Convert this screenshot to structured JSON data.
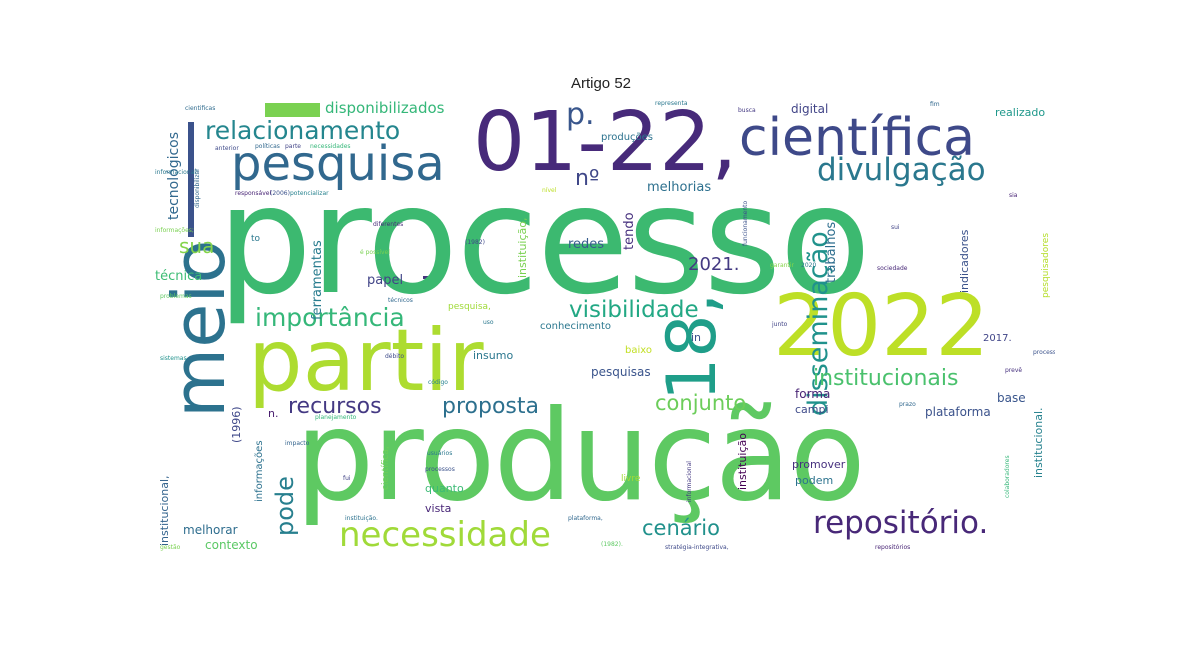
{
  "title": "Artigo 52",
  "words": [
    {
      "id": "processo",
      "text": "processo",
      "color": "#3cb970"
    },
    {
      "id": "producao",
      "text": "produção",
      "color": "#5ec962"
    },
    {
      "id": "partir",
      "text": "partir",
      "color": "#addc30"
    },
    {
      "id": "0122",
      "text": "01-22,",
      "color": "#472a7a"
    },
    {
      "id": "2022",
      "text": "2022",
      "color": "#bddf26"
    },
    {
      "id": "18",
      "text": "18,",
      "color": "#1f9e89"
    },
    {
      "id": "meio",
      "text": "meio",
      "color": "#2c728e"
    },
    {
      "id": "cientifica",
      "text": "científica",
      "color": "#3e4989"
    },
    {
      "id": "pesquisa",
      "text": "pesquisa",
      "color": "#31688e"
    },
    {
      "id": "necessidade",
      "text": "necessidade",
      "color": "#a0da39"
    },
    {
      "id": "repositorio",
      "text": "repositório.",
      "color": "#482878"
    },
    {
      "id": "divulgacao",
      "text": "divulgação",
      "color": "#2a788e"
    },
    {
      "id": "disseminacao",
      "text": "disseminação",
      "color": "#20928c"
    },
    {
      "id": "relacionamento",
      "text": "relacionamento",
      "color": "#24868e"
    },
    {
      "id": "importancia",
      "text": "importância",
      "color": "#35b779"
    },
    {
      "id": "visibilidade",
      "text": "visibilidade",
      "color": "#22a884"
    },
    {
      "id": "institucionais",
      "text": "institucionais",
      "color": "#4ac16d"
    },
    {
      "id": "recursos",
      "text": "recursos",
      "color": "#443983"
    },
    {
      "id": "proposta",
      "text": "proposta",
      "color": "#2d708e"
    },
    {
      "id": "conjunto",
      "text": "conjunto",
      "color": "#6ccd5a"
    },
    {
      "id": "pode",
      "text": "pode",
      "color": "#277f8e"
    },
    {
      "id": "cenario",
      "text": "cenário",
      "color": "#21918c"
    },
    {
      "id": "sua",
      "text": "sua",
      "color": "#84d44b"
    },
    {
      "id": "n2021",
      "text": "2021.",
      "color": "#443a83"
    },
    {
      "id": "p",
      "text": "p.",
      "color": "#39568c"
    },
    {
      "id": "no",
      "text": "nº",
      "color": "#3f4788"
    },
    {
      "id": "melhorias",
      "text": "melhorias",
      "color": "#2d708e"
    },
    {
      "id": "tendo",
      "text": "tendo",
      "color": "#46307e"
    },
    {
      "id": "disponibilizados",
      "text": "disponibilizados",
      "color": "#35b779"
    },
    {
      "id": "tecnologicos",
      "text": "tecnológicos",
      "color": "#31688e"
    },
    {
      "id": "tecnica",
      "text": "técnica",
      "color": "#3dbc74"
    },
    {
      "id": "ferramentas",
      "text": "ferramentas",
      "color": "#287c8e"
    },
    {
      "id": "papel",
      "text": "papel",
      "color": "#414487"
    },
    {
      "id": "redes",
      "text": "redes",
      "color": "#365c8d"
    },
    {
      "id": "trabalhos",
      "text": "trabalhos",
      "color": "#2e6e8e"
    },
    {
      "id": "indicadores",
      "text": "indicadores",
      "color": "#3b528b"
    },
    {
      "id": "digital",
      "text": "digital",
      "color": "#414487"
    },
    {
      "id": "realizado",
      "text": "realizado",
      "color": "#1f988b"
    },
    {
      "id": "producoes",
      "text": "produções",
      "color": "#2c728e"
    },
    {
      "id": "instituicao",
      "text": "instituição,",
      "color": "#7ad151"
    },
    {
      "id": "instituicao2",
      "text": "instituição",
      "color": "#440154"
    },
    {
      "id": "base",
      "text": "base",
      "color": "#39558c"
    },
    {
      "id": "plataforma",
      "text": "plataforma",
      "color": "#3b528b"
    },
    {
      "id": "forma",
      "text": "forma",
      "color": "#482475"
    },
    {
      "id": "campi",
      "text": "campi",
      "color": "#3e4a89"
    },
    {
      "id": "promover",
      "text": "promover",
      "color": "#46307e"
    },
    {
      "id": "podem",
      "text": "podem",
      "color": "#2c738e"
    },
    {
      "id": "pesquisas",
      "text": "pesquisas",
      "color": "#3a548c"
    },
    {
      "id": "insumo",
      "text": "insumo",
      "color": "#2a778e"
    },
    {
      "id": "quanto",
      "text": "quanto",
      "color": "#3bbb75"
    },
    {
      "id": "vista",
      "text": "vista",
      "color": "#482677"
    },
    {
      "id": "contexto",
      "text": "contexto",
      "color": "#5ac864"
    },
    {
      "id": "melhorar",
      "text": "melhorar",
      "color": "#2e6d8e"
    },
    {
      "id": "instucional",
      "text": "institucional,",
      "color": "#33638d"
    },
    {
      "id": "n1996",
      "text": "(1996)",
      "color": "#3f4889"
    },
    {
      "id": "conhecimento",
      "text": "conhecimento",
      "color": "#2a778e"
    },
    {
      "id": "in",
      "text": "in",
      "color": "#3b518b"
    },
    {
      "id": "n2017",
      "text": "2017.",
      "color": "#404588"
    },
    {
      "id": "institucional2",
      "text": "institucional.",
      "color": "#26828e"
    },
    {
      "id": "n",
      "text": "n.",
      "color": "#481d6f"
    },
    {
      "id": "baixo",
      "text": "baixo",
      "color": "#c2df23"
    },
    {
      "id": "livre",
      "text": "livre",
      "color": "#a2da37"
    },
    {
      "id": "informacoes",
      "text": "informações",
      "color": "#2c718e"
    },
    {
      "id": "cientifica2",
      "text": "científica,",
      "color": "#6ece58"
    },
    {
      "id": "to",
      "text": "to",
      "color": "#2a788e"
    },
    {
      "id": "pesquisadores",
      "text": "pesquisadores",
      "color": "#b5de2b"
    },
    {
      "id": "t1",
      "text": "cientificas",
      "color": "#2f6b8e"
    },
    {
      "id": "t2",
      "text": "anterior",
      "color": "#3e4a89"
    },
    {
      "id": "t3",
      "text": "políticas",
      "color": "#31688e"
    },
    {
      "id": "t4",
      "text": "parte",
      "color": "#414487"
    },
    {
      "id": "t5",
      "text": "necessidades",
      "color": "#35b779"
    },
    {
      "id": "t6",
      "text": "responsável",
      "color": "#482475"
    },
    {
      "id": "t7",
      "text": "(2006),",
      "color": "#3b528b"
    },
    {
      "id": "t8",
      "text": "potencializar",
      "color": "#26828e"
    },
    {
      "id": "t9",
      "text": "diferentes",
      "color": "#472c7a"
    },
    {
      "id": "t10",
      "text": "(1982)",
      "color": "#3e4989"
    },
    {
      "id": "t11",
      "text": "é possível",
      "color": "#7ad151"
    },
    {
      "id": "t12",
      "text": "representa",
      "color": "#2a788e"
    },
    {
      "id": "t13",
      "text": "busca",
      "color": "#443983"
    },
    {
      "id": "t14",
      "text": "fim",
      "color": "#31688e"
    },
    {
      "id": "t15",
      "text": "nível",
      "color": "#bddf26"
    },
    {
      "id": "t16",
      "text": "garantir",
      "color": "#86d549"
    },
    {
      "id": "t17",
      "text": "sociedade",
      "color": "#482878"
    },
    {
      "id": "t18",
      "text": "problemas",
      "color": "#5ec962"
    },
    {
      "id": "t19",
      "text": "técnicos",
      "color": "#31688e"
    },
    {
      "id": "t20",
      "text": "uso",
      "color": "#2a788e"
    },
    {
      "id": "t21",
      "text": "junto",
      "color": "#414487"
    },
    {
      "id": "t22",
      "text": "processos",
      "color": "#3b528b"
    },
    {
      "id": "t23",
      "text": "prevê",
      "color": "#46307e"
    },
    {
      "id": "t24",
      "text": "sistemas",
      "color": "#20928c"
    },
    {
      "id": "t25",
      "text": "código",
      "color": "#26828e"
    },
    {
      "id": "t26",
      "text": "débito",
      "color": "#3e4a89"
    },
    {
      "id": "t27",
      "text": "impacto",
      "color": "#33638d"
    },
    {
      "id": "t28",
      "text": "usuários",
      "color": "#2a788e"
    },
    {
      "id": "t29",
      "text": "processos",
      "color": "#3b528b"
    },
    {
      "id": "t30",
      "text": "fui",
      "color": "#414487"
    },
    {
      "id": "t31",
      "text": "planejamento",
      "color": "#35b779"
    },
    {
      "id": "t32",
      "text": "instituição.",
      "color": "#2c728e"
    },
    {
      "id": "t33",
      "text": "plataforma,",
      "color": "#31688e"
    },
    {
      "id": "t34",
      "text": "gestão",
      "color": "#7ad151"
    },
    {
      "id": "t35",
      "text": "(1982).",
      "color": "#5ec962"
    },
    {
      "id": "t36",
      "text": "stratégia-integrativa,",
      "color": "#3e4989"
    },
    {
      "id": "t37",
      "text": "repositórios",
      "color": "#482475"
    },
    {
      "id": "t38",
      "text": "principalmente",
      "color": "#443983"
    },
    {
      "id": "t39",
      "text": "informacional;",
      "color": "#2a788e"
    },
    {
      "id": "t40",
      "text": "disponibilizar",
      "color": "#31688e"
    },
    {
      "id": "t41",
      "text": "informações;",
      "color": "#7ad151"
    },
    {
      "id": "t42",
      "text": "funcionamento",
      "color": "#3b528b"
    },
    {
      "id": "t43",
      "text": "sui",
      "color": "#414487"
    },
    {
      "id": "t44",
      "text": "informacional",
      "color": "#443983"
    },
    {
      "id": "t45",
      "text": "colaboradores",
      "color": "#35b779"
    },
    {
      "id": "t46",
      "text": "2020",
      "color": "#2a788e"
    },
    {
      "id": "t47",
      "text": "pesquisa,",
      "color": "#a0da39"
    },
    {
      "id": "t48",
      "text": "prazo",
      "color": "#31688e"
    },
    {
      "id": "t49",
      "text": "sia",
      "color": "#482475"
    }
  ]
}
